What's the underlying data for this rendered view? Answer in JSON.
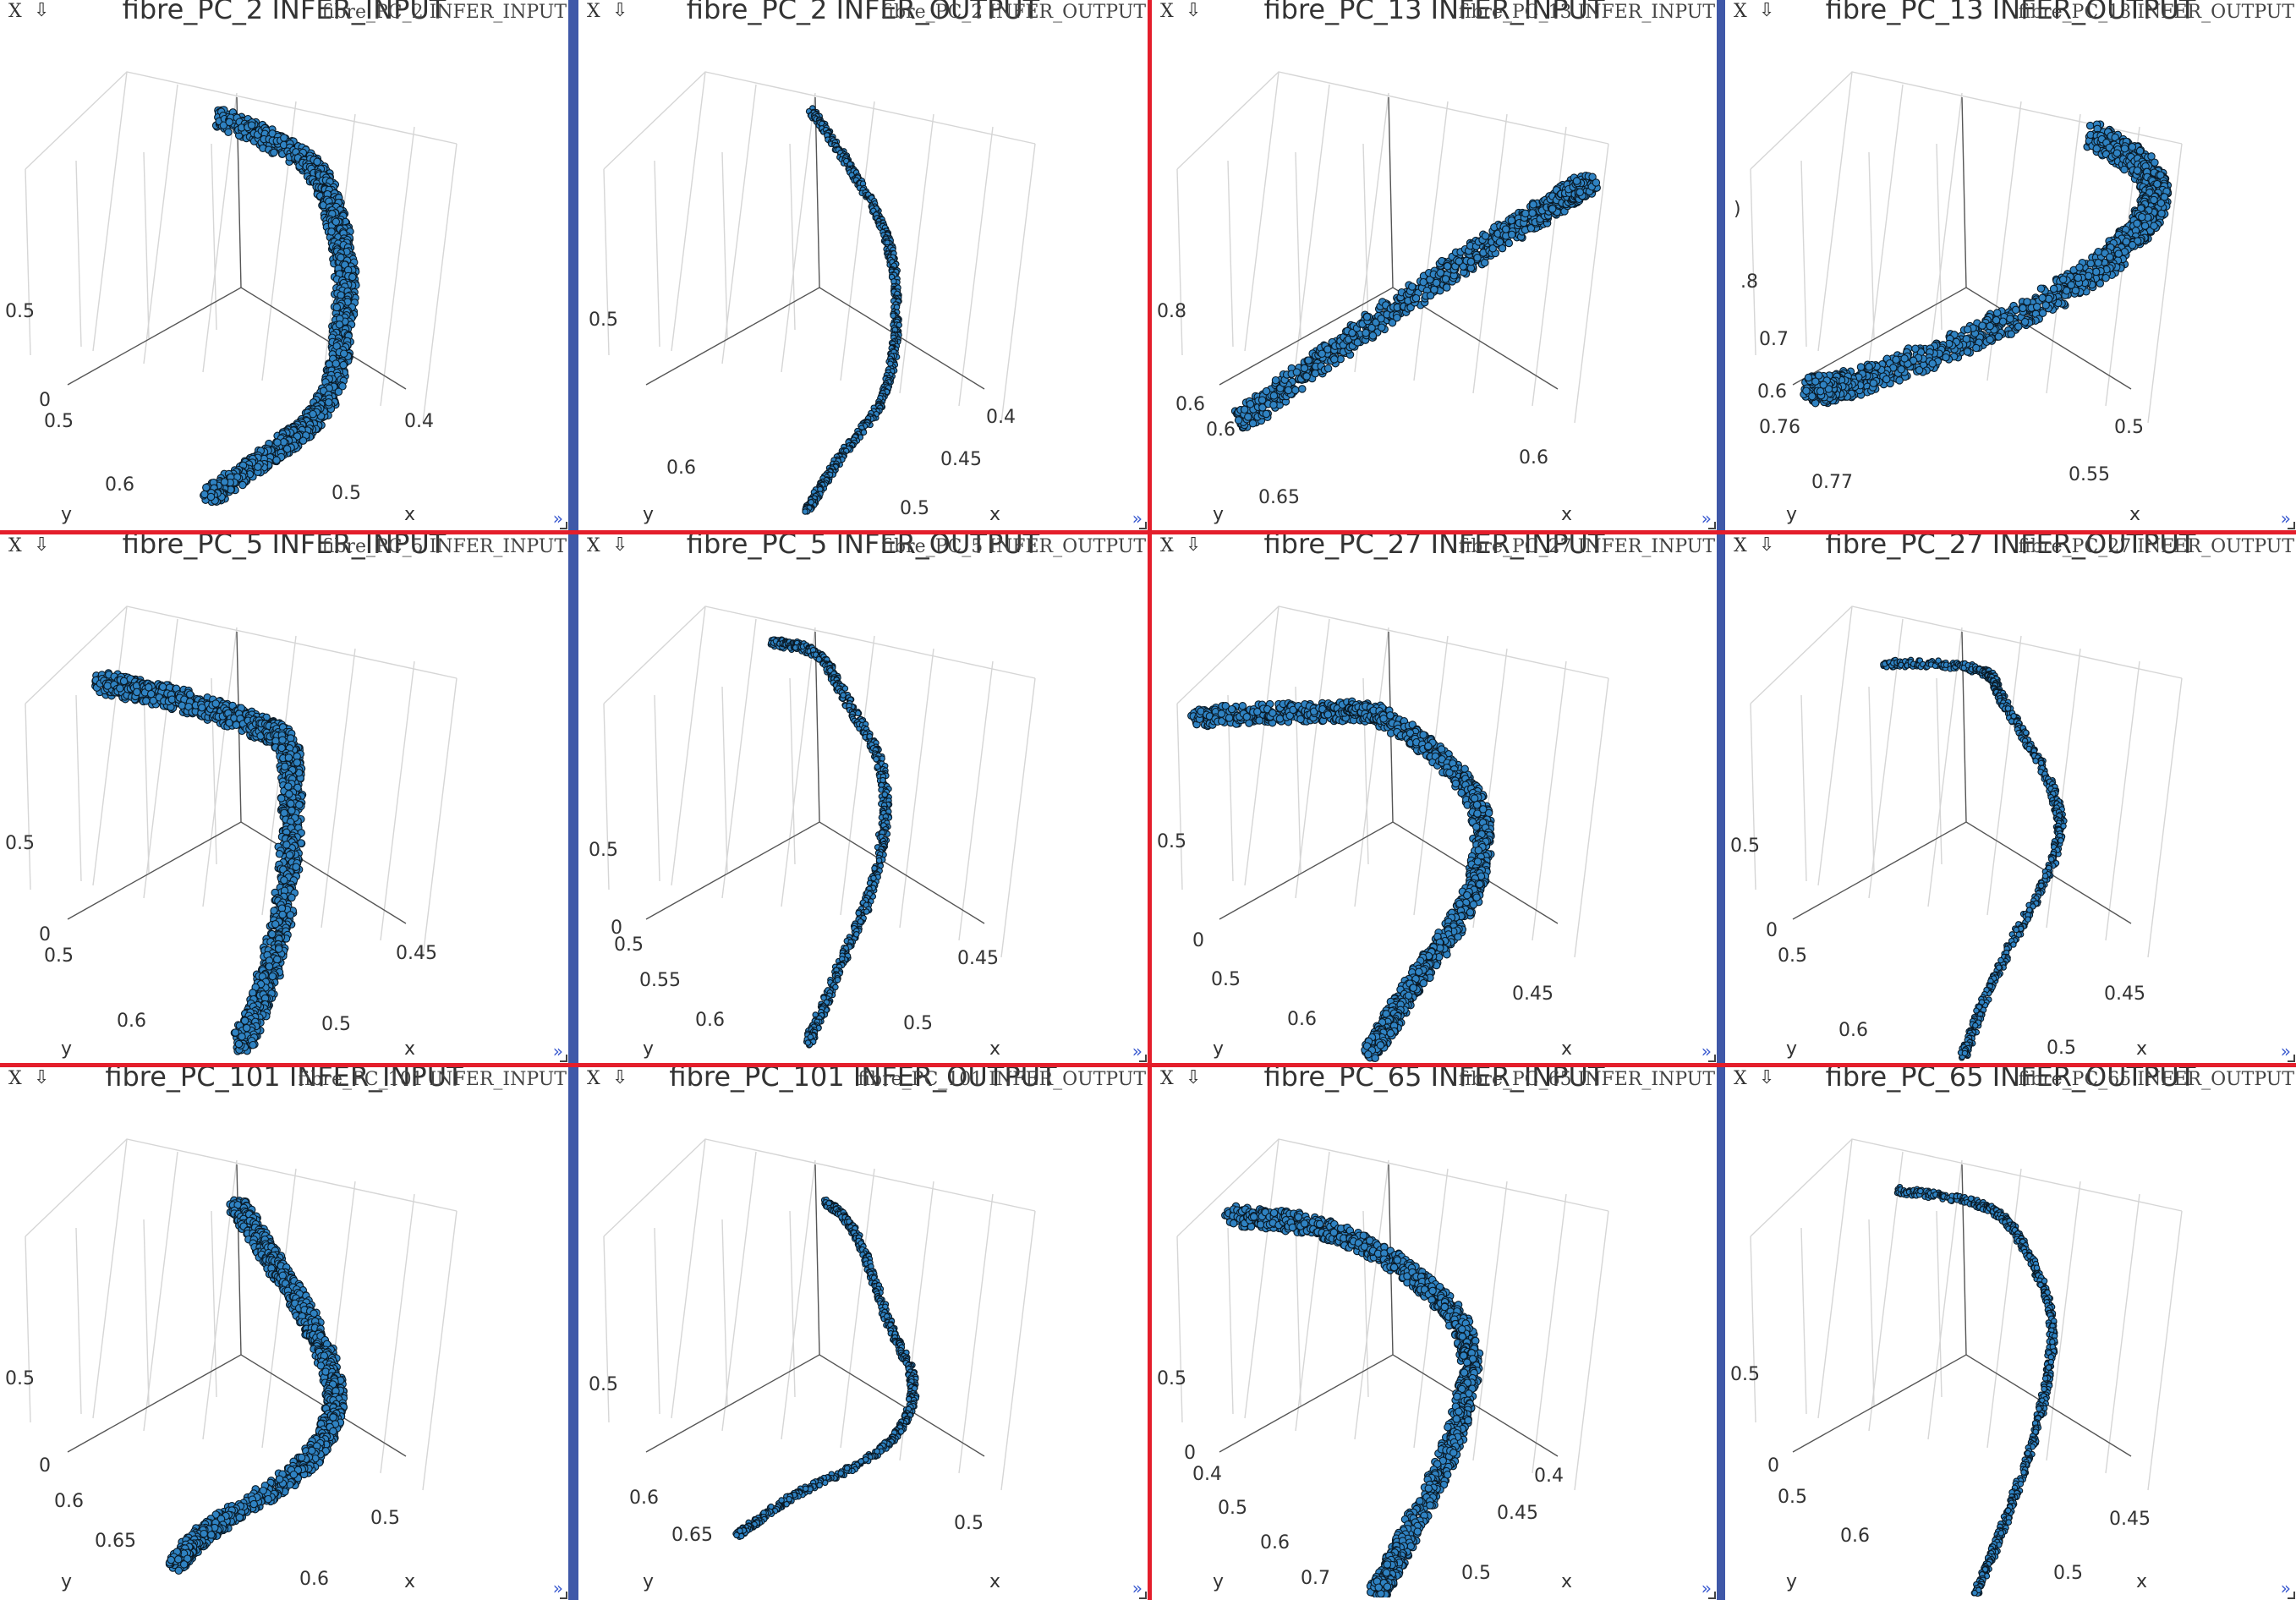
{
  "ui": {
    "close_label": "X",
    "arrow_icon": "download-arrow-icon",
    "expand_icon": "double-chevron-right-icon",
    "colors": {
      "blue_separator": "#3f58a8",
      "red_separator": "#e41e2b",
      "point_fill": "#2f82c2",
      "point_edge": "#0a1a26"
    }
  },
  "panels": [
    {
      "caption": "fibre_PC_2 INFER_INPUT",
      "title": "fibre_PC_2  INFER_INPUT",
      "ticks": [
        "0.5",
        "0",
        "0.5",
        "0.6",
        "y",
        "0.4",
        "0.5",
        "x"
      ]
    },
    {
      "caption": "fibre_PC_2 INFER_OUTPUT",
      "title": "fibre_PC_2  INFER_OUTPUT",
      "ticks": [
        "0.5",
        "0.6",
        "y",
        "0.4",
        "0.45",
        "0.5",
        "x"
      ]
    },
    {
      "caption": "fibre_PC_13 INFER_INPUT",
      "title": "fibre_PC_13  INFER_INPUT",
      "ticks": [
        "0.8",
        "0.6",
        "0.6",
        "0.65",
        "y",
        "0.6",
        "x"
      ]
    },
    {
      "caption": "fibre_PC_13 INFER_OUTPUT",
      "title": "fibre_PC_13  INFER_OUTPUT",
      "ticks": [
        ")",
        ".8",
        "0.7",
        "0.6",
        "0.76",
        "0.77",
        "y",
        "0.5",
        "0.55",
        "x"
      ]
    },
    {
      "caption": "fibre_PC_5 INFER_INPUT",
      "title": "fibre_PC_5  INFER_INPUT",
      "ticks": [
        "0.5",
        "0",
        "0.5",
        "0.6",
        "y",
        "0.45",
        "0.5",
        "x"
      ]
    },
    {
      "caption": "fibre_PC_5 INFER_OUTPUT",
      "title": "fibre_PC_5  INFER_OUTPUT",
      "ticks": [
        "0.5",
        "0",
        "0.5",
        "0.55",
        "0.6",
        "y",
        "0.45",
        "0.5",
        "x"
      ]
    },
    {
      "caption": "fibre_PC_27 INFER_INPUT",
      "title": "fibre_PC_27  INFER_INPUT",
      "ticks": [
        "0.5",
        "0",
        "0.5",
        "0.6",
        "y",
        "0.45",
        "x"
      ]
    },
    {
      "caption": "fibre_PC_27 INFER_OUTPUT",
      "title": "fibre_PC_27  INFER_OUTPUT",
      "ticks": [
        "0.5",
        "0",
        "0.5",
        "0.6",
        "y",
        "0.45",
        "0.5",
        "x"
      ]
    },
    {
      "caption": "fibre_PC_101 INFER_INPUT",
      "title": "fibre_PC_101  INFER_INPUT",
      "ticks": [
        "0.5",
        "0",
        "0.6",
        "0.65",
        "y",
        "0.5",
        "0.6",
        "x"
      ]
    },
    {
      "caption": "fibre_PC_101 INFER_OUTPUT",
      "title": "fibre_PC_101  INFER_OUTPUT",
      "ticks": [
        "0.5",
        "0.6",
        "0.65",
        "y",
        "0.5",
        "x"
      ]
    },
    {
      "caption": "fibre_PC_65 INFER_INPUT",
      "title": "fibre_PC_65  INFER_INPUT",
      "ticks": [
        "0.5",
        "0",
        "0.4",
        "0.5",
        "0.6",
        "y",
        "0.7",
        "0.4",
        "0.45",
        "0.5",
        "x"
      ]
    },
    {
      "caption": "fibre_PC_65 INFER_OUTPUT",
      "title": "fibre_PC_65  INFER_OUTPUT",
      "ticks": [
        "0.5",
        "0",
        "0.5",
        "0.6",
        "y",
        "0.45",
        "0.5",
        "x"
      ]
    }
  ]
}
